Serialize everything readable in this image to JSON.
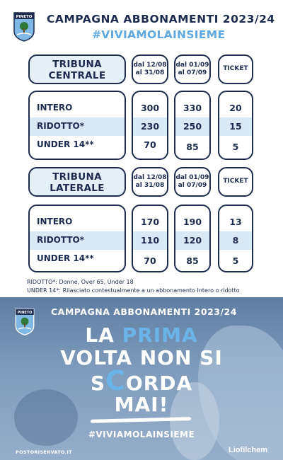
{
  "header": {
    "title": "CAMPAGNA ABBONAMENTI 2023/24",
    "hashtag": "#VIVIAMOLAINSIEME",
    "logo_text": "PINETO"
  },
  "periods": {
    "early": [
      "dal 12/08",
      "al 31/08"
    ],
    "late": [
      "dal 01/09",
      "al 07/09"
    ],
    "ticket": "TICKET"
  },
  "sections": [
    {
      "name_lines": [
        "TRIBUNA",
        "CENTRALE"
      ],
      "rows": [
        {
          "label": "INTERO",
          "early": "300",
          "late": "330",
          "ticket": "20"
        },
        {
          "label": "RIDOTTO*",
          "early": "230",
          "late": "250",
          "ticket": "15"
        },
        {
          "label": "UNDER 14**",
          "early": "70",
          "late": "85",
          "ticket": "5"
        }
      ]
    },
    {
      "name_lines": [
        "TRIBUNA",
        "LATERALE"
      ],
      "rows": [
        {
          "label": "INTERO",
          "early": "170",
          "late": "190",
          "ticket": "13"
        },
        {
          "label": "RIDOTTO*",
          "early": "110",
          "late": "120",
          "ticket": "8"
        },
        {
          "label": "UNDER 14**",
          "early": "70",
          "late": "85",
          "ticket": "5"
        }
      ]
    }
  ],
  "notes": [
    "RIDOTTO*: Donne, Over 65, Under 18",
    "UNDER 14*: Rilasciato contestualmente a un abbonamento Intero o ridotto"
  ],
  "banner": {
    "title": "CAMPAGNA ABBONAMENTI 2023/24",
    "line1_a": "LA ",
    "line1_b": "PRIMA",
    "line2": "VOLTA NON SI",
    "line3_a": "S",
    "line3_b": "C",
    "line3_c": "ORDA",
    "line4": "MAI!",
    "hashtag": "#VIVIAMOLAINSIEME",
    "website": "POSTORISERVATO.IT",
    "sponsor": "Liofilchem",
    "logo_text": "PINETO"
  },
  "colors": {
    "navy": "#1d2b4f",
    "accent_blue": "#5fa8e0",
    "box_fill": "#e4eff8"
  }
}
